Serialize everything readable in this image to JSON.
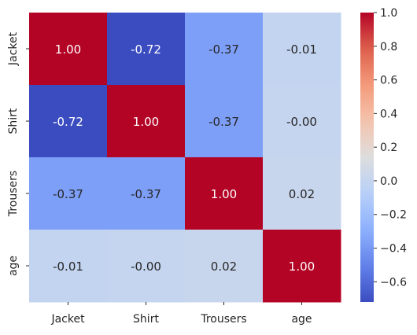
{
  "chart_data": {
    "type": "heatmap",
    "title": "",
    "xlabel": "",
    "ylabel": "",
    "row_labels": [
      "Jacket",
      "Shirt",
      "Trousers",
      "age"
    ],
    "col_labels": [
      "Jacket",
      "Shirt",
      "Trousers",
      "age"
    ],
    "values": [
      [
        1.0,
        -0.72,
        -0.37,
        -0.01
      ],
      [
        -0.72,
        1.0,
        -0.37,
        -0.0
      ],
      [
        -0.37,
        -0.37,
        1.0,
        0.02
      ],
      [
        -0.01,
        -0.0,
        0.02,
        1.0
      ]
    ],
    "annotations": [
      [
        "1.00",
        "-0.72",
        "-0.37",
        "-0.01"
      ],
      [
        "-0.72",
        "1.00",
        "-0.37",
        "-0.00"
      ],
      [
        "-0.37",
        "-0.37",
        "1.00",
        "0.02"
      ],
      [
        "-0.01",
        "-0.00",
        "0.02",
        "1.00"
      ]
    ],
    "colormap": "coolwarm",
    "color_range": [
      -0.72,
      1.0
    ],
    "colorbar": {
      "ticks": [
        1.0,
        0.8,
        0.6,
        0.4,
        0.2,
        0.0,
        -0.2,
        -0.4,
        -0.6
      ],
      "tick_labels": [
        "1.0",
        "0.8",
        "0.6",
        "0.4",
        "0.2",
        "0.0",
        "−0.2",
        "−0.4",
        "−0.6"
      ]
    },
    "grid": false,
    "legend": "colorbar-right"
  }
}
